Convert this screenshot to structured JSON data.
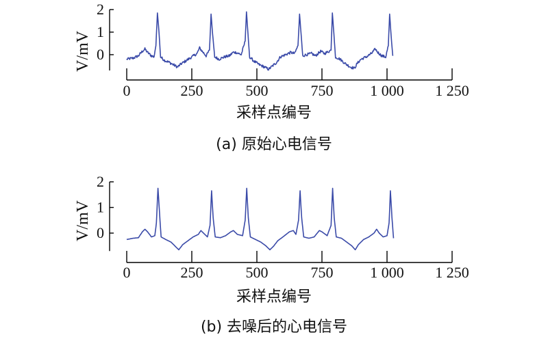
{
  "chart_data": [
    {
      "type": "line",
      "caption": "(a) 原始心电信号",
      "xlabel": "采样点编号",
      "ylabel": "V/mV",
      "xlim": [
        0,
        1250
      ],
      "ylim": [
        -0.7,
        2.05
      ],
      "xticks": [
        0,
        250,
        500,
        750,
        1000,
        1250
      ],
      "xtick_labels": [
        "0",
        "250",
        "500",
        "750",
        "1 000",
        "1 250"
      ],
      "yticks": [
        0,
        1,
        2
      ],
      "ytick_labels": [
        "0",
        "1",
        "2"
      ],
      "line_color": "#3a4aa8",
      "noisy": true,
      "series": [
        {
          "points": [
            [
              0,
              -0.2
            ],
            [
              25,
              -0.15
            ],
            [
              45,
              -0.05
            ],
            [
              60,
              0.15
            ],
            [
              70,
              0.25
            ],
            [
              80,
              0.1
            ],
            [
              95,
              -0.05
            ],
            [
              105,
              -0.1
            ],
            [
              112,
              0.4
            ],
            [
              118,
              1.85
            ],
            [
              124,
              1.0
            ],
            [
              130,
              -0.1
            ],
            [
              145,
              -0.25
            ],
            [
              165,
              -0.35
            ],
            [
              180,
              -0.45
            ],
            [
              195,
              -0.55
            ],
            [
              210,
              -0.4
            ],
            [
              230,
              -0.25
            ],
            [
              250,
              -0.1
            ],
            [
              270,
              0.05
            ],
            [
              280,
              0.3
            ],
            [
              290,
              0.15
            ],
            [
              305,
              -0.05
            ],
            [
              318,
              0.2
            ],
            [
              324,
              1.8
            ],
            [
              330,
              0.9
            ],
            [
              338,
              -0.1
            ],
            [
              355,
              -0.2
            ],
            [
              375,
              -0.1
            ],
            [
              395,
              -0.05
            ],
            [
              408,
              0.1
            ],
            [
              420,
              0.1
            ],
            [
              440,
              0.0
            ],
            [
              455,
              0.6
            ],
            [
              460,
              1.9
            ],
            [
              466,
              0.9
            ],
            [
              472,
              -0.1
            ],
            [
              490,
              -0.3
            ],
            [
              510,
              -0.45
            ],
            [
              530,
              -0.55
            ],
            [
              545,
              -0.65
            ],
            [
              560,
              -0.5
            ],
            [
              575,
              -0.35
            ],
            [
              590,
              -0.1
            ],
            [
              610,
              0.0
            ],
            [
              630,
              0.1
            ],
            [
              645,
              0.05
            ],
            [
              658,
              0.4
            ],
            [
              664,
              1.8
            ],
            [
              670,
              0.9
            ],
            [
              676,
              -0.05
            ],
            [
              690,
              0.0
            ],
            [
              710,
              0.05
            ],
            [
              725,
              -0.05
            ],
            [
              745,
              0.15
            ],
            [
              760,
              0.05
            ],
            [
              785,
              0.2
            ],
            [
              790,
              1.85
            ],
            [
              796,
              0.9
            ],
            [
              802,
              -0.1
            ],
            [
              820,
              -0.2
            ],
            [
              840,
              -0.4
            ],
            [
              860,
              -0.55
            ],
            [
              875,
              -0.6
            ],
            [
              885,
              -0.4
            ],
            [
              900,
              -0.2
            ],
            [
              920,
              -0.1
            ],
            [
              940,
              0.05
            ],
            [
              955,
              0.25
            ],
            [
              965,
              0.1
            ],
            [
              980,
              -0.05
            ],
            [
              995,
              -0.1
            ],
            [
              1005,
              0.4
            ],
            [
              1010,
              1.8
            ],
            [
              1016,
              0.8
            ],
            [
              1022,
              -0.05
            ]
          ]
        }
      ]
    },
    {
      "type": "line",
      "caption": "(b) 去噪后的心电信号",
      "xlabel": "采样点编号",
      "ylabel": "V/mV",
      "xlim": [
        0,
        1250
      ],
      "ylim": [
        -0.7,
        2.05
      ],
      "xticks": [
        0,
        250,
        500,
        750,
        1000,
        1250
      ],
      "xtick_labels": [
        "0",
        "250",
        "500",
        "750",
        "1 000",
        "1 250"
      ],
      "yticks": [
        0,
        1,
        2
      ],
      "ytick_labels": [
        "0",
        "1",
        "2"
      ],
      "line_color": "#3a4aa8",
      "noisy": false,
      "series": [
        {
          "points": [
            [
              0,
              -0.25
            ],
            [
              25,
              -0.2
            ],
            [
              45,
              -0.18
            ],
            [
              60,
              0.05
            ],
            [
              70,
              0.15
            ],
            [
              80,
              0.05
            ],
            [
              95,
              -0.15
            ],
            [
              108,
              -0.1
            ],
            [
              114,
              0.4
            ],
            [
              120,
              1.75
            ],
            [
              126,
              0.8
            ],
            [
              132,
              -0.15
            ],
            [
              150,
              -0.25
            ],
            [
              170,
              -0.35
            ],
            [
              185,
              -0.5
            ],
            [
              200,
              -0.65
            ],
            [
              215,
              -0.45
            ],
            [
              235,
              -0.3
            ],
            [
              255,
              -0.15
            ],
            [
              275,
              -0.05
            ],
            [
              285,
              0.1
            ],
            [
              295,
              0.0
            ],
            [
              310,
              -0.15
            ],
            [
              320,
              0.3
            ],
            [
              326,
              1.65
            ],
            [
              332,
              0.6
            ],
            [
              340,
              -0.15
            ],
            [
              360,
              -0.18
            ],
            [
              380,
              -0.1
            ],
            [
              400,
              0.05
            ],
            [
              410,
              0.1
            ],
            [
              425,
              -0.05
            ],
            [
              445,
              -0.1
            ],
            [
              455,
              0.5
            ],
            [
              461,
              1.75
            ],
            [
              467,
              0.6
            ],
            [
              475,
              -0.15
            ],
            [
              495,
              -0.25
            ],
            [
              515,
              -0.35
            ],
            [
              535,
              -0.5
            ],
            [
              550,
              -0.65
            ],
            [
              565,
              -0.5
            ],
            [
              580,
              -0.3
            ],
            [
              600,
              -0.15
            ],
            [
              625,
              0.05
            ],
            [
              640,
              0.1
            ],
            [
              650,
              -0.05
            ],
            [
              660,
              0.5
            ],
            [
              666,
              1.65
            ],
            [
              672,
              0.6
            ],
            [
              680,
              -0.15
            ],
            [
              700,
              -0.2
            ],
            [
              720,
              -0.15
            ],
            [
              740,
              0.1
            ],
            [
              750,
              0.05
            ],
            [
              770,
              -0.1
            ],
            [
              785,
              0.3
            ],
            [
              791,
              1.75
            ],
            [
              797,
              0.6
            ],
            [
              805,
              -0.15
            ],
            [
              825,
              -0.2
            ],
            [
              845,
              -0.35
            ],
            [
              865,
              -0.5
            ],
            [
              878,
              -0.65
            ],
            [
              890,
              -0.45
            ],
            [
              910,
              -0.25
            ],
            [
              930,
              -0.15
            ],
            [
              950,
              0.0
            ],
            [
              960,
              0.15
            ],
            [
              970,
              0.0
            ],
            [
              985,
              -0.15
            ],
            [
              1000,
              -0.1
            ],
            [
              1008,
              0.4
            ],
            [
              1013,
              1.65
            ],
            [
              1019,
              0.6
            ],
            [
              1025,
              -0.2
            ]
          ]
        }
      ]
    }
  ]
}
